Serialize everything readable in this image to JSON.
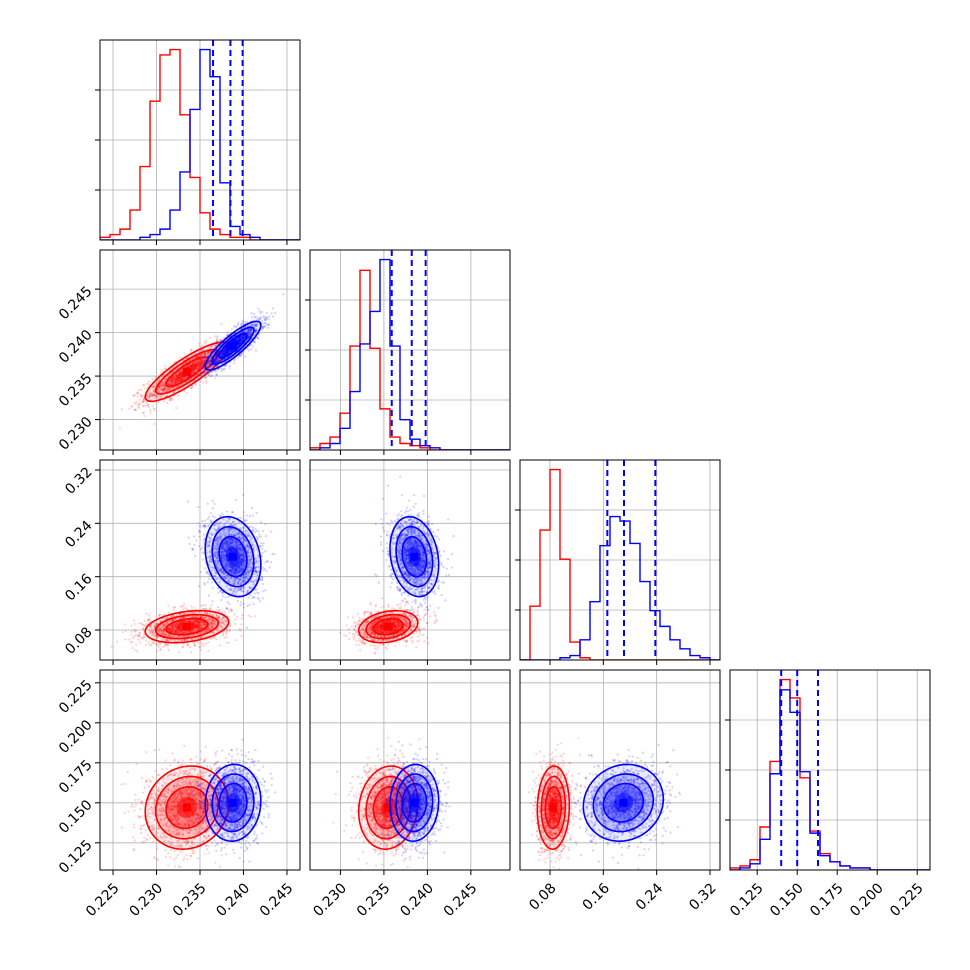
{
  "chart_data": {
    "type": "corner",
    "grid": true,
    "series_colors": [
      "#ff0000",
      "#0000ff"
    ],
    "parameters": [
      {
        "range": [
          0.2235,
          0.2465
        ],
        "ticks": [
          0.225,
          0.23,
          0.235,
          0.24,
          0.245
        ],
        "tick_labels": [
          "0.225",
          "0.230",
          "0.235",
          "0.240",
          "0.245"
        ]
      },
      {
        "range": [
          0.2265,
          0.2495
        ],
        "ticks": [
          0.23,
          0.235,
          0.24,
          0.245
        ],
        "tick_labels": [
          "0.230",
          "0.235",
          "0.240",
          "0.245"
        ]
      },
      {
        "range": [
          0.035,
          0.335
        ],
        "ticks": [
          0.08,
          0.16,
          0.24,
          0.32
        ],
        "tick_labels": [
          "0.08",
          "0.16",
          "0.24",
          "0.32"
        ]
      },
      {
        "range": [
          0.108,
          0.233
        ],
        "ticks": [
          0.125,
          0.15,
          0.175,
          0.2,
          0.225
        ],
        "tick_labels": [
          "0.125",
          "0.150",
          "0.175",
          "0.200",
          "0.225"
        ]
      }
    ],
    "histograms": [
      {
        "bins": 20,
        "red": [
          1,
          2,
          4,
          11,
          27,
          51,
          68,
          70,
          46,
          23,
          10,
          4,
          2,
          1,
          1,
          0,
          0,
          0,
          0,
          0
        ],
        "blue": [
          0,
          0,
          0,
          0,
          1,
          2,
          4,
          11,
          25,
          48,
          70,
          60,
          21,
          5,
          2,
          1,
          0,
          0,
          0,
          0
        ],
        "quantiles": [
          0.2365,
          0.2385,
          0.2399
        ]
      },
      {
        "bins": 20,
        "red": [
          1,
          3,
          6,
          17,
          48,
          83,
          47,
          19,
          6,
          3,
          2,
          1,
          0,
          0,
          0,
          0,
          0,
          0,
          0,
          0
        ],
        "blue": [
          0,
          1,
          3,
          10,
          27,
          49,
          64,
          88,
          48,
          14,
          5,
          2,
          1,
          0,
          0,
          0,
          0,
          0,
          0,
          0
        ],
        "quantiles": [
          0.2359,
          0.2382,
          0.2398
        ]
      },
      {
        "bins": 20,
        "red": [
          0,
          24,
          58,
          85,
          45,
          8,
          1,
          0,
          0,
          0,
          0,
          0,
          0,
          0,
          0,
          0,
          0,
          0,
          0,
          0
        ],
        "blue": [
          0,
          0,
          0,
          0,
          1,
          2,
          9,
          26,
          51,
          64,
          62,
          52,
          35,
          22,
          15,
          9,
          5,
          2,
          1,
          0
        ],
        "quantiles": [
          0.166,
          0.191,
          0.238
        ]
      },
      {
        "bins": 20,
        "red": [
          1,
          2,
          5,
          21,
          53,
          93,
          84,
          45,
          19,
          8,
          4,
          2,
          1,
          1,
          0,
          0,
          0,
          0,
          0,
          0
        ],
        "blue": [
          0,
          1,
          3,
          15,
          47,
          88,
          77,
          48,
          18,
          7,
          4,
          2,
          1,
          1,
          0,
          0,
          0,
          0,
          0,
          0
        ],
        "quantiles": [
          0.14,
          0.15,
          0.163
        ]
      }
    ],
    "posteriors": {
      "red": {
        "mean": [
          0.2335,
          0.2355,
          0.085,
          0.147
        ],
        "sd": [
          0.0024,
          0.0017,
          0.012,
          0.013
        ],
        "corr": [
          [
            1,
            0.85,
            0.3,
            0.1
          ],
          [
            0.85,
            1,
            0.25,
            0.1
          ],
          [
            0.3,
            0.25,
            1,
            0.05
          ],
          [
            0.1,
            0.1,
            0.05,
            1
          ]
        ]
      },
      "blue": {
        "mean": [
          0.2388,
          0.2385,
          0.19,
          0.15
        ],
        "sd": [
          0.0016,
          0.0014,
          0.03,
          0.012
        ],
        "corr": [
          [
            1,
            0.85,
            -0.2,
            0.05
          ],
          [
            0.85,
            1,
            -0.2,
            0.05
          ],
          [
            -0.2,
            -0.2,
            1,
            0.1
          ],
          [
            0.05,
            0.05,
            0.1,
            1
          ]
        ]
      }
    }
  }
}
